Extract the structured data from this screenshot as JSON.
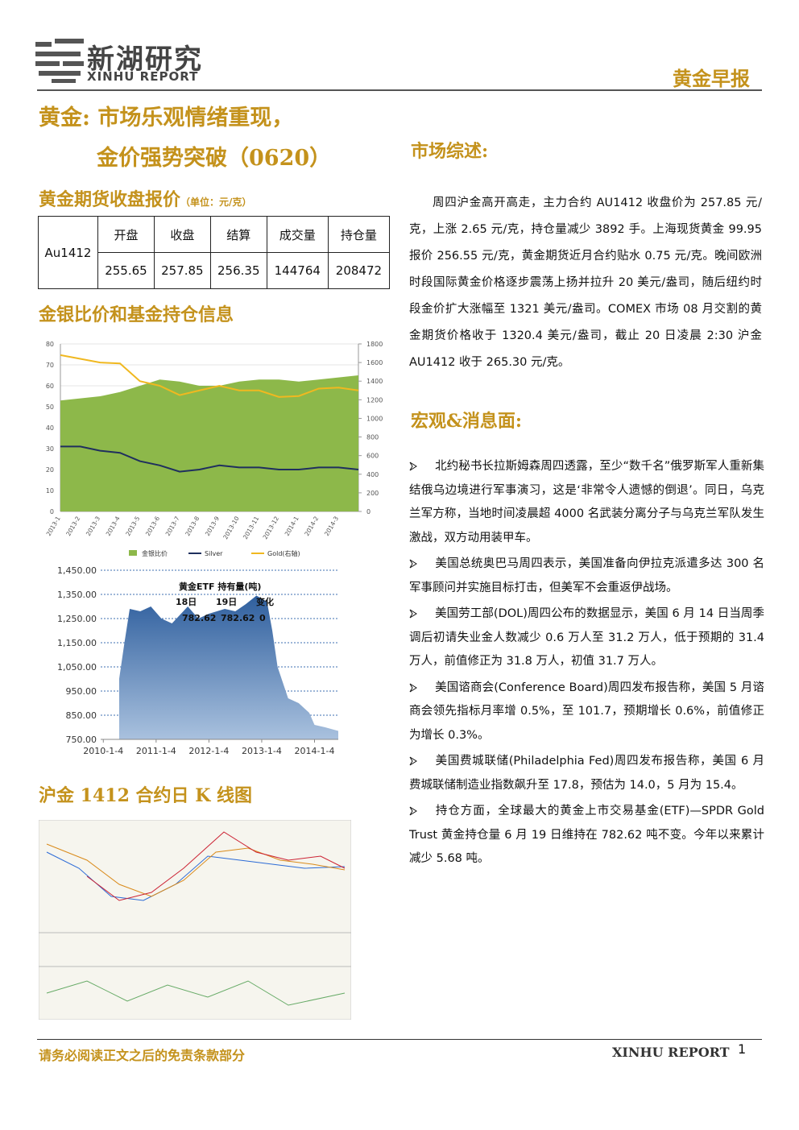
{
  "header": {
    "logo_cn": "新湖研究",
    "logo_en": "XINHU REPORT",
    "report_type": "黄金早报"
  },
  "title": {
    "line1": "黄金: 市场乐观情绪重现，",
    "line2": "金价强势突破（0620）"
  },
  "quote": {
    "heading": "黄金期货收盘报价",
    "unit": "（单位：元/克）",
    "contract": "Au1412",
    "columns": [
      "开盘",
      "收盘",
      "结算",
      "成交量",
      "持仓量"
    ],
    "values": [
      255.65,
      257.85,
      256.35,
      144764,
      208472
    ]
  },
  "ratio_heading": "金银比价和基金持仓信息",
  "chart_data": [
    {
      "type": "line",
      "categories": [
        "2013-1",
        "2013-2",
        "2013-3",
        "2013-4",
        "2013-5",
        "2013-6",
        "2013-7",
        "2013-8",
        "2013-9",
        "2013-10",
        "2013-11",
        "2013-12",
        "2014-1",
        "2014-2",
        "2014-3",
        null
      ],
      "ylim": [
        0,
        80
      ],
      "yticks": [
        0,
        10,
        20,
        30,
        40,
        50,
        60,
        70,
        80
      ],
      "y2lim": [
        0,
        1800
      ],
      "y2ticks": [
        0,
        200,
        400,
        600,
        800,
        1000,
        1200,
        1400,
        1600,
        1800
      ],
      "grid": true,
      "series": [
        {
          "name": "金银比价",
          "type": "area",
          "color": "#8db84a",
          "values": [
            53,
            54,
            55,
            57,
            60,
            63,
            62,
            60,
            60,
            62,
            63,
            63,
            62,
            63,
            64,
            65
          ]
        },
        {
          "name": "Silver",
          "color": "#1f2f5e",
          "values": [
            31,
            31,
            29,
            28,
            24,
            22,
            19,
            20,
            22,
            21,
            21,
            20,
            20,
            21,
            21,
            20
          ]
        },
        {
          "name": "Gold(右轴)",
          "color": "#f0b820",
          "axis": "y2",
          "values": [
            1680,
            1640,
            1600,
            1590,
            1400,
            1350,
            1250,
            1300,
            1350,
            1300,
            1300,
            1230,
            1240,
            1320,
            1330,
            1300
          ]
        }
      ]
    },
    {
      "type": "area",
      "title": "黄金ETF 持有量(吨)",
      "color": "#3d6fb0",
      "x": [
        2010.3,
        2010.4,
        2010.5,
        2010.7,
        2010.9,
        2011.1,
        2011.3,
        2011.6,
        2011.8,
        2012.0,
        2012.3,
        2012.5,
        2012.7,
        2012.9,
        2013.1,
        2013.2,
        2013.3,
        2013.5,
        2013.7,
        2013.9,
        2014.0,
        2014.2,
        2014.45
      ],
      "values": [
        1000,
        1150,
        1290,
        1280,
        1300,
        1250,
        1230,
        1300,
        1250,
        1270,
        1290,
        1280,
        1310,
        1345,
        1320,
        1200,
        1050,
        920,
        900,
        860,
        810,
        800,
        785
      ],
      "xlim": [
        2009.95,
        2014.45
      ],
      "xticks": [
        {
          "value": 2010.0,
          "label": "2010-1-4"
        },
        {
          "value": 2011.0,
          "label": "2011-1-4"
        },
        {
          "value": 2012.0,
          "label": "2012-1-4"
        },
        {
          "value": 2013.0,
          "label": "2013-1-4"
        },
        {
          "value": 2014.0,
          "label": "2014-1-4"
        }
      ],
      "ylim": [
        750,
        1450
      ],
      "yticks": [
        {
          "value": 750,
          "label": "750.00"
        },
        {
          "value": 850,
          "label": "850.00"
        },
        {
          "value": 950,
          "label": "950.00"
        },
        {
          "value": 1050,
          "label": "1,050.00"
        },
        {
          "value": 1150,
          "label": "1,150.00"
        },
        {
          "value": 1250,
          "label": "1,250.00"
        },
        {
          "value": 1350,
          "label": "1,350.00"
        },
        {
          "value": 1450,
          "label": "1,450.00"
        }
      ],
      "table": {
        "header": [
          "18日",
          "19日",
          "变化"
        ],
        "values": [
          782.62,
          782.62,
          0
        ]
      }
    }
  ],
  "kline_heading": "沪金 1412 合约日 K 线图",
  "market": {
    "heading": "市场综述:",
    "text": "周四沪金高开高走，主力合约 AU1412 收盘价为 257.85 元/克，上涨 2.65 元/克，持仓量减少 3892 手。上海现货黄金 99.95 报价 256.55 元/克，黄金期货近月合约贴水 0.75 元/克。晚间欧洲时段国际黄金价格逐步震荡上扬并拉升 20 美元/盎司，随后纽约时段金价扩大涨幅至 1321 美元/盎司。COMEX 市场 08 月交割的黄金期货价格收于 1320.4 美元/盎司，截止 20 日凌晨 2:30 沪金 AU1412 收于 265.30 元/克。"
  },
  "macro": {
    "heading": "宏观&消息面:",
    "items": [
      "北约秘书长拉斯姆森周四透露，至少“数千名”俄罗斯军人重新集结俄乌边境进行军事演习，这是‘非常令人遗憾的倒退’。同日，乌克兰军方称，当地时间凌晨超 4000 名武装分离分子与乌克兰军队发生激战，双方动用装甲车。",
      "美国总统奥巴马周四表示，美国准备向伊拉克派遣多达 300 名军事顾问并实施目标打击，但美军不会重返伊战场。",
      "美国劳工部(DOL)周四公布的数据显示，美国 6 月 14 日当周季调后初请失业金人数减少 0.6 万人至 31.2 万人，低于预期的 31.4 万人，前值修正为 31.8 万人，初值 31.7 万人。",
      "美国谘商会(Conference Board)周四发布报告称，美国 5 月谘商会领先指标月率增 0.5%，至 101.7，预期增长 0.6%，前值修正为增长 0.3%。",
      "美国费城联储(Philadelphia Fed)周四发布报告称，美国 6 月费城联储制造业指数飙升至 17.8，预估为 14.0，5 月为 15.4。",
      "持仓方面，全球最大的黄金上市交易基金(ETF)—SPDR Gold Trust 黄金持仓量 6 月 19 日维持在 782.62 吨不变。今年以来累计减少 5.68 吨。"
    ]
  },
  "footer": {
    "disclaimer": "请务必阅读正文之后的免责条款部分",
    "brand": "XINHU REPORT",
    "page": 1
  }
}
